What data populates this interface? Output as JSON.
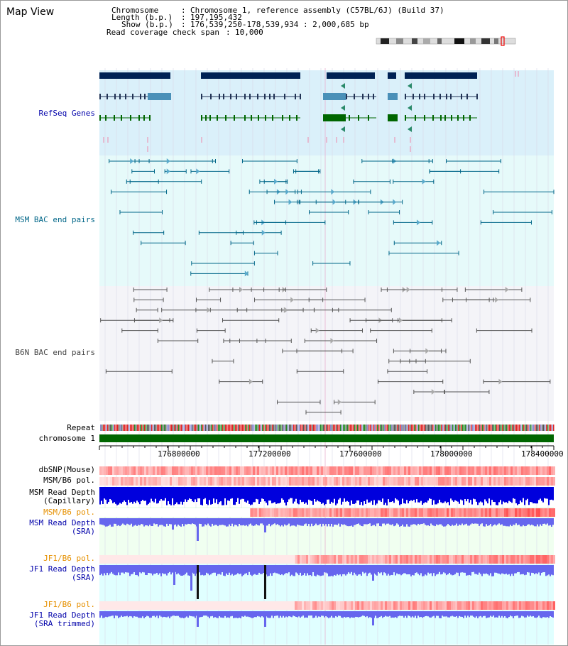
{
  "view_title": "Map View",
  "info": {
    "chromosome_key": "Chromosome",
    "chromosome_value": "Chromosome 1, reference assembly (C57BL/6J) (Build 37)",
    "length_key": "Length (b.p.)",
    "length_value": "197,195,432",
    "show_key": "Show (b.p.)",
    "show_value": "176,539,250-178,539,934 : 2,000,685 bp",
    "coverage_key": "Read coverage check span",
    "coverage_value": "10,000"
  },
  "tracks": {
    "refseq": "RefSeq Genes",
    "msm_bac": "MSM BAC end pairs",
    "b6n_bac": "B6N BAC end pairs",
    "repeat": "Repeat",
    "chromosome": "chromosome 1",
    "dbsnp": "dbSNP(Mouse)",
    "msm_b6_pol_1": "MSM/B6 pol.",
    "msm_depth_cap_1": "MSM Read Depth",
    "msm_depth_cap_2": "(Capillary)",
    "msm_b6_pol_2": "MSM/B6 pol.",
    "msm_depth_sra_1": "MSM Read Depth",
    "msm_depth_sra_2": "(SRA)",
    "jf1_b6_pol_1": "JF1/B6 pol.",
    "jf1_depth_sra_1": "JF1 Read Depth",
    "jf1_depth_sra_2": "(SRA)",
    "jf1_b6_pol_2": "JF1/B6 pol.",
    "jf1_depth_trim_1": "JF1 Read Depth",
    "jf1_depth_trim_2": "(SRA trimmed)"
  },
  "axis_ticks": [
    "176800000",
    "177200000",
    "177600000",
    "178000000",
    "178400000"
  ],
  "colors": {
    "refseq_bg": "#daf0fa",
    "msm_bg": "#e6fafa",
    "b6n_bg": "#f4f4f8",
    "depth_bg": "#f0fff0",
    "jf1_bg": "#e0ffff",
    "gene_dark": "#002255",
    "gene_green": "#006600",
    "msm_line": "#006688",
    "b6n_line": "#555555",
    "chromosome_bar": "#006600",
    "depth_blue": "#0000dd",
    "depth_light": "#6666ee",
    "snp_red": "#ee3333"
  }
}
